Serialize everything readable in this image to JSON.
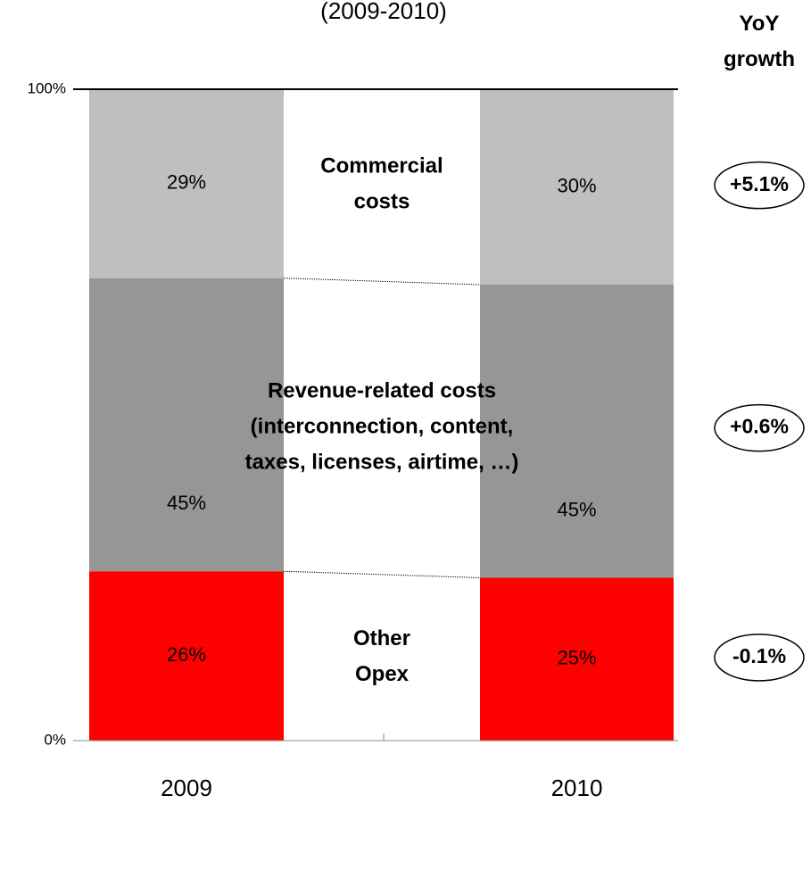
{
  "chart_data": {
    "type": "stacked_bar_100",
    "title": "(2009-2010)",
    "growth_header": "YoY\ngrowth",
    "categories": [
      "2009",
      "2010"
    ],
    "ylim": [
      0,
      100
    ],
    "yticks": [
      {
        "value": 0,
        "label": "0%"
      },
      {
        "value": 100,
        "label": "100%"
      }
    ],
    "series": [
      {
        "name": "Other\nOpex",
        "color": "#ff0000",
        "values": [
          26,
          25
        ],
        "value_labels": [
          "26%",
          "25%"
        ],
        "growth": "-0.1%"
      },
      {
        "name": "Revenue-related costs\n(interconnection, content,\ntaxes, licenses, airtime, …)",
        "color": "#969696",
        "values": [
          45,
          45
        ],
        "value_labels": [
          "45%",
          "45%"
        ],
        "growth": "+0.6%"
      },
      {
        "name": "Commercial\ncosts",
        "color": "#bfbfbf",
        "values": [
          29,
          30
        ],
        "value_labels": [
          "29%",
          "30%"
        ],
        "growth": "+5.1%"
      }
    ]
  }
}
